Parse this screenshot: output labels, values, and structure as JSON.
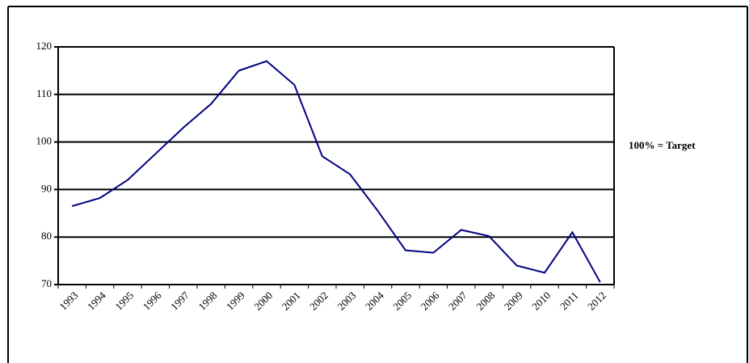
{
  "chart_data": {
    "type": "line",
    "categories": [
      "1993",
      "1994",
      "1995",
      "1996",
      "1997",
      "1998",
      "1999",
      "2000",
      "2001",
      "2002",
      "2003",
      "2004",
      "2005",
      "2006",
      "2007",
      "2008",
      "2009",
      "2010",
      "2011",
      "2012"
    ],
    "series": [
      {
        "color": "#000080",
        "values": [
          86.5,
          88.2,
          92,
          97.5,
          103,
          108,
          115,
          117,
          112,
          97,
          93.2,
          85.5,
          77.2,
          76.7,
          81.5,
          80.2,
          74,
          72.5,
          81,
          70.5
        ]
      }
    ],
    "ylim": [
      70,
      120
    ],
    "yticks": [
      70,
      80,
      90,
      100,
      110,
      120
    ],
    "grid": true,
    "annotation": "100% = Target"
  }
}
